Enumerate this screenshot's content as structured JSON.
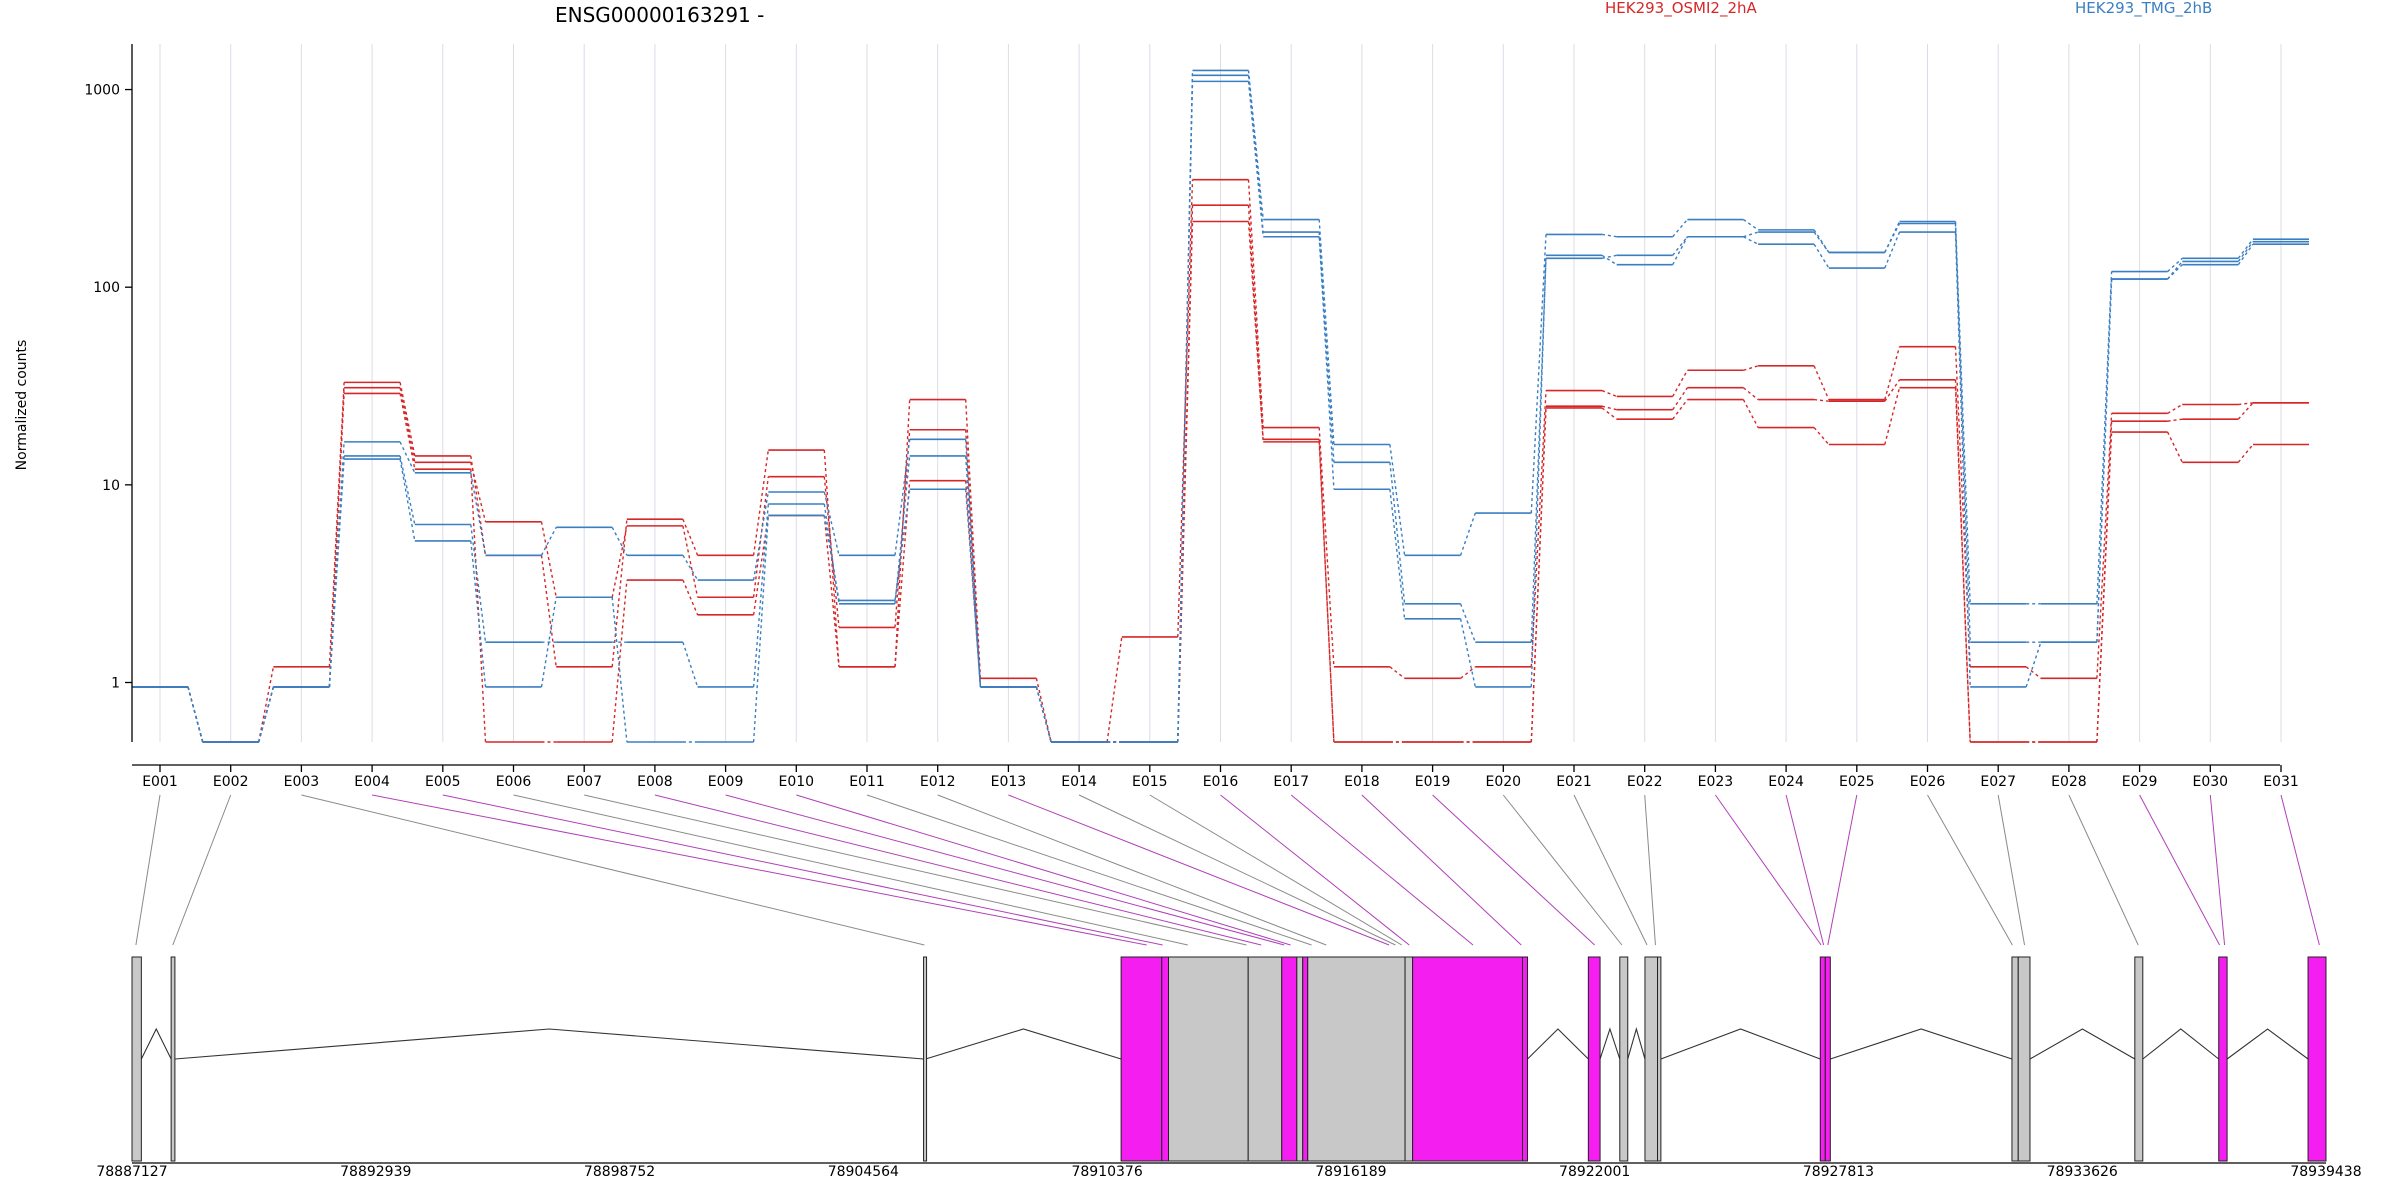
{
  "colors": {
    "condition_a": "#d62728",
    "condition_b": "#3a7fc2",
    "exon_fill": "#c8c8c8",
    "exon_highlight": "#f41ef0",
    "connector_grey": "#8a8a8a",
    "connector_highlight": "#b040b8"
  },
  "chart_data": {
    "type": "line",
    "title": "ENSG00000163291 -",
    "xlabel": "",
    "ylabel": "Normalized counts",
    "y_scale": "log",
    "ylim": [
      0.5,
      1700
    ],
    "y_ticks": [
      1,
      10,
      100,
      1000
    ],
    "y_tick_labels": [
      "1",
      "10",
      "100",
      "1000"
    ],
    "grid": "vertical",
    "legend": [
      "HEK293_OSMI2_2hA",
      "HEK293_TMG_2hB"
    ],
    "legend_placement": "top",
    "categories": [
      "E001",
      "E002",
      "E003",
      "E004",
      "E005",
      "E006",
      "E007",
      "E008",
      "E009",
      "E010",
      "E011",
      "E012",
      "E013",
      "E014",
      "E015",
      "E016",
      "E017",
      "E018",
      "E019",
      "E020",
      "E021",
      "E022",
      "E023",
      "E024",
      "E025",
      "E026",
      "E027",
      "E028",
      "E029",
      "E030",
      "E031"
    ],
    "series": [
      {
        "group": "HEK293_OSMI2_2hA",
        "values": [
          0.95,
          0.5,
          1.2,
          33,
          14,
          4.4,
          1.2,
          6.7,
          4.4,
          15,
          1.2,
          27,
          1.05,
          0.5,
          1.7,
          350,
          19.5,
          1.2,
          1.05,
          1.2,
          30,
          28,
          38,
          40,
          27,
          50,
          1.2,
          1.05,
          23,
          25.5,
          26
        ]
      },
      {
        "group": "HEK293_OSMI2_2hA",
        "values": [
          0.95,
          0.5,
          0.95,
          31,
          13,
          6.5,
          2.7,
          6.2,
          2.7,
          11,
          1.9,
          19,
          0.95,
          0.5,
          0.5,
          260,
          17,
          0.5,
          0.5,
          0.5,
          25,
          24,
          31,
          27,
          26.5,
          34,
          0.5,
          0.5,
          21,
          21.5,
          26
        ]
      },
      {
        "group": "HEK293_OSMI2_2hA",
        "values": [
          0.95,
          0.5,
          0.95,
          29,
          12,
          0.5,
          0.5,
          3.3,
          2.2,
          7,
          1.2,
          10.5,
          0.95,
          0.5,
          0.5,
          215,
          16.5,
          0.5,
          0.5,
          0.5,
          24.5,
          21.5,
          27,
          19.5,
          16,
          31,
          0.5,
          0.5,
          18.5,
          13,
          16
        ]
      },
      {
        "group": "HEK293_TMG_2hB",
        "values": [
          0.95,
          0.5,
          0.95,
          16.5,
          11.5,
          4.4,
          6.1,
          4.4,
          3.3,
          9.2,
          4.4,
          17,
          0.95,
          0.5,
          0.5,
          1250,
          220,
          16,
          4.4,
          7.2,
          185,
          180,
          220,
          195,
          150,
          215,
          2.5,
          2.5,
          120,
          140,
          175
        ]
      },
      {
        "group": "HEK293_TMG_2hB",
        "values": [
          0.95,
          0.5,
          0.95,
          14,
          6.3,
          1.6,
          1.6,
          1.6,
          0.95,
          8,
          2.5,
          14,
          0.95,
          0.5,
          0.5,
          1180,
          190,
          13,
          2.5,
          1.6,
          140,
          145,
          180,
          190,
          150,
          210,
          1.6,
          1.6,
          110,
          135,
          170
        ]
      },
      {
        "group": "HEK293_TMG_2hB",
        "values": [
          0.95,
          0.5,
          0.95,
          13.5,
          5.2,
          0.95,
          2.7,
          0.5,
          0.5,
          7,
          2.6,
          9.5,
          0.95,
          0.5,
          0.5,
          1100,
          180,
          9.5,
          2.1,
          0.95,
          145,
          130,
          180,
          165,
          125,
          190,
          0.95,
          1.6,
          110,
          130,
          165
        ]
      }
    ],
    "genomic_axis": {
      "range": [
        78887127,
        78939438
      ],
      "tick_labels": [
        "78887127",
        "78892939",
        "78898752",
        "78904564",
        "78910376",
        "78916189",
        "78922001",
        "78927813",
        "78933626",
        "78939438"
      ]
    },
    "exon_model": {
      "exons": [
        {
          "id": "E001",
          "start": 78887127,
          "end": 78887350,
          "highlight": false
        },
        {
          "id": "E002",
          "start": 78888060,
          "end": 78888150,
          "highlight": false
        },
        {
          "id": "E003",
          "start": 78906000,
          "end": 78906050,
          "highlight": false
        },
        {
          "id": "E004",
          "start": 78910710,
          "end": 78911680,
          "highlight": true
        },
        {
          "id": "E005",
          "start": 78911680,
          "end": 78911840,
          "highlight": true
        },
        {
          "id": "E006",
          "start": 78911840,
          "end": 78913740,
          "highlight": false
        },
        {
          "id": "E007",
          "start": 78913740,
          "end": 78914540,
          "highlight": false
        },
        {
          "id": "E008",
          "start": 78914540,
          "end": 78914900,
          "highlight": true
        },
        {
          "id": "E009",
          "start": 78914900,
          "end": 78915040,
          "highlight": false
        },
        {
          "id": "E010",
          "start": 78915040,
          "end": 78915160,
          "highlight": true
        },
        {
          "id": "E011",
          "start": 78915160,
          "end": 78917480,
          "highlight": false
        },
        {
          "id": "E012",
          "start": 78917480,
          "end": 78917660,
          "highlight": false
        },
        {
          "id": "E013",
          "start": 78917660,
          "end": 78920280,
          "highlight": true
        },
        {
          "id": "E014",
          "start": 78920280,
          "end": 78920400,
          "highlight": true
        },
        {
          "id": "E015",
          "start": 78921850,
          "end": 78922130,
          "highlight": true
        },
        {
          "id": "E016",
          "start": 78922600,
          "end": 78922790,
          "highlight": false
        },
        {
          "id": "E017",
          "start": 78923200,
          "end": 78923500,
          "highlight": false
        },
        {
          "id": "E018",
          "start": 78923500,
          "end": 78923580,
          "highlight": false
        },
        {
          "id": "E019",
          "start": 78927380,
          "end": 78927500,
          "highlight": true
        },
        {
          "id": "E020",
          "start": 78927500,
          "end": 78927620,
          "highlight": true
        },
        {
          "id": "E021",
          "start": 78931950,
          "end": 78932100,
          "highlight": false
        },
        {
          "id": "E022",
          "start": 78932100,
          "end": 78932380,
          "highlight": false
        },
        {
          "id": "E023",
          "start": 78934880,
          "end": 78935070,
          "highlight": false
        },
        {
          "id": "E024",
          "start": 78936880,
          "end": 78937080,
          "highlight": true
        },
        {
          "id": "E025",
          "start": 78939010,
          "end": 78939438,
          "highlight": true
        }
      ],
      "connectors": [
        {
          "bin": "E001",
          "pos": 78887220,
          "highlight": false
        },
        {
          "bin": "E002",
          "pos": 78888100,
          "highlight": false
        },
        {
          "bin": "E003",
          "pos": 78906020,
          "highlight": false
        },
        {
          "bin": "E004",
          "pos": 78911320,
          "highlight": true
        },
        {
          "bin": "E005",
          "pos": 78911700,
          "highlight": true
        },
        {
          "bin": "E006",
          "pos": 78912300,
          "highlight": false
        },
        {
          "bin": "E007",
          "pos": 78913700,
          "highlight": false
        },
        {
          "bin": "E008",
          "pos": 78914050,
          "highlight": true
        },
        {
          "bin": "E009",
          "pos": 78914600,
          "highlight": true
        },
        {
          "bin": "E010",
          "pos": 78914750,
          "highlight": true
        },
        {
          "bin": "E011",
          "pos": 78915250,
          "highlight": false
        },
        {
          "bin": "E012",
          "pos": 78915600,
          "highlight": false
        },
        {
          "bin": "E013",
          "pos": 78917100,
          "highlight": true
        },
        {
          "bin": "E014",
          "pos": 78917250,
          "highlight": false
        },
        {
          "bin": "E015",
          "pos": 78917400,
          "highlight": false
        },
        {
          "bin": "E016",
          "pos": 78917580,
          "highlight": true
        },
        {
          "bin": "E017",
          "pos": 78919100,
          "highlight": true
        },
        {
          "bin": "E018",
          "pos": 78920250,
          "highlight": true
        },
        {
          "bin": "E019",
          "pos": 78922000,
          "highlight": true
        },
        {
          "bin": "E020",
          "pos": 78922650,
          "highlight": false
        },
        {
          "bin": "E021",
          "pos": 78923250,
          "highlight": false
        },
        {
          "bin": "E022",
          "pos": 78923450,
          "highlight": false
        },
        {
          "bin": "E023",
          "pos": 78927400,
          "highlight": true
        },
        {
          "bin": "E024",
          "pos": 78927460,
          "highlight": true
        },
        {
          "bin": "E025",
          "pos": 78927560,
          "highlight": true
        },
        {
          "bin": "E026",
          "pos": 78931960,
          "highlight": false
        },
        {
          "bin": "E027",
          "pos": 78932250,
          "highlight": false
        },
        {
          "bin": "E028",
          "pos": 78934960,
          "highlight": false
        },
        {
          "bin": "E029",
          "pos": 78936900,
          "highlight": true
        },
        {
          "bin": "E030",
          "pos": 78937020,
          "highlight": true
        },
        {
          "bin": "E031",
          "pos": 78939280,
          "highlight": true
        }
      ]
    }
  }
}
